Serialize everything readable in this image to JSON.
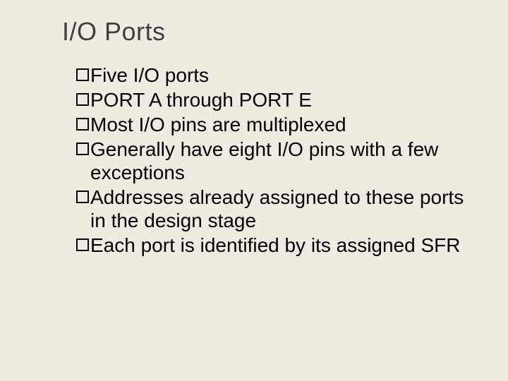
{
  "background_color": "#eeece1",
  "title": {
    "text": "I/O Ports",
    "fontsize": 36,
    "color": "#3f3f3f"
  },
  "body": {
    "fontsize": 28,
    "text_color": "#000000",
    "bullet_border_color": "#000000",
    "items": [
      {
        "text": "Five I/O ports"
      },
      {
        "text": "PORT A through PORT E"
      },
      {
        "text": "Most I/O pins are multiplexed"
      },
      {
        "text": "Generally have eight I/O pins with a few exceptions"
      },
      {
        "text": "Addresses already assigned to these ports in the design stage"
      },
      {
        "text": "Each port is identified by its assigned SFR"
      }
    ]
  }
}
